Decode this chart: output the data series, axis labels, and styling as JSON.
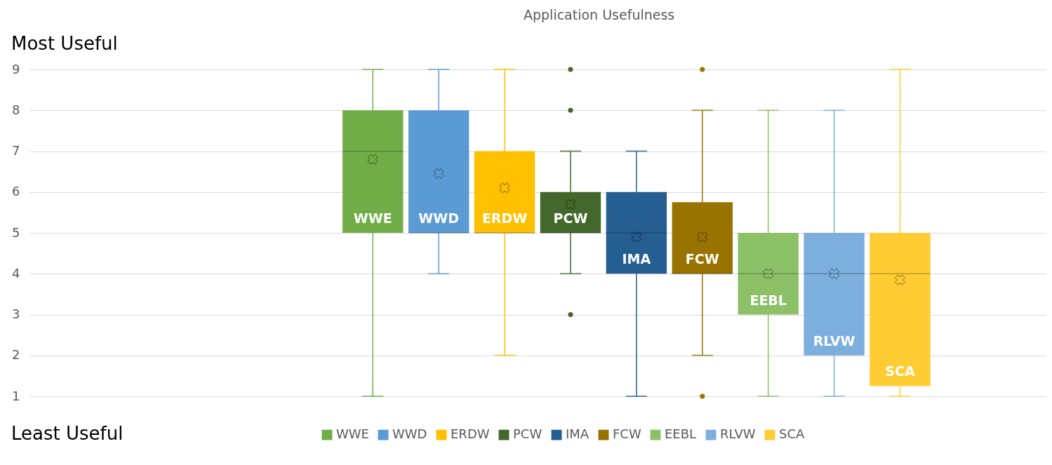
{
  "chart_data": {
    "type": "box",
    "title": "Application Usefulness",
    "categories": [
      null
    ],
    "series": [
      {
        "name": "WWE",
        "color": "#70ad47",
        "boxes": [
          {
            "low": 1,
            "q1": 5,
            "median": 7,
            "q3": 8,
            "high": 9,
            "mean": 6.8
          }
        ]
      },
      {
        "name": "WWD",
        "color": "#5b9bd5",
        "boxes": [
          {
            "low": 4,
            "q1": 5,
            "median": 5,
            "q3": 8,
            "high": 9,
            "mean": 6.45
          }
        ]
      },
      {
        "name": "ERDW",
        "color": "#ffc000",
        "boxes": [
          {
            "low": 2,
            "q1": 5,
            "median": 5,
            "q3": 7,
            "high": 9,
            "mean": 6.1
          }
        ]
      },
      {
        "name": "PCW",
        "color": "#43682b",
        "boxes": [
          {
            "low": 4,
            "q1": 5,
            "median": 5,
            "q3": 6,
            "high": 7,
            "mean": 5.7,
            "outliers": [
              9,
              8,
              3
            ]
          }
        ]
      },
      {
        "name": "IMA",
        "color": "#255e91",
        "boxes": [
          {
            "low": 1,
            "q1": 4,
            "median": 5,
            "q3": 6,
            "high": 7,
            "mean": 4.9
          }
        ]
      },
      {
        "name": "FCW",
        "color": "#997300",
        "boxes": [
          {
            "low": 2,
            "q1": 4,
            "median": 4,
            "q3": 5.75,
            "high": 8,
            "mean": 4.9,
            "outliers": [
              9,
              1
            ]
          }
        ]
      },
      {
        "name": "EEBL",
        "color": "#8cc168",
        "boxes": [
          {
            "low": 1,
            "q1": 3,
            "median": 4,
            "q3": 5,
            "high": 8,
            "mean": 4.0
          }
        ]
      },
      {
        "name": "RLVW",
        "color": "#7cafdd",
        "boxes": [
          {
            "low": 1,
            "q1": 2,
            "median": 4,
            "q3": 5,
            "high": 8,
            "mean": 4.0
          }
        ]
      },
      {
        "name": "SCA",
        "color": "#ffcd33",
        "boxes": [
          {
            "low": 1,
            "q1": 1.25,
            "median": 4,
            "q3": 5,
            "high": 9,
            "mean": 3.85
          }
        ]
      }
    ],
    "ylim": [
      1,
      9
    ],
    "yticks": [
      1,
      2,
      3,
      4,
      5,
      6,
      7,
      8,
      9
    ],
    "grid": "y",
    "legend": "bottom",
    "annotations": [
      "Most Useful",
      "Least Useful"
    ]
  }
}
